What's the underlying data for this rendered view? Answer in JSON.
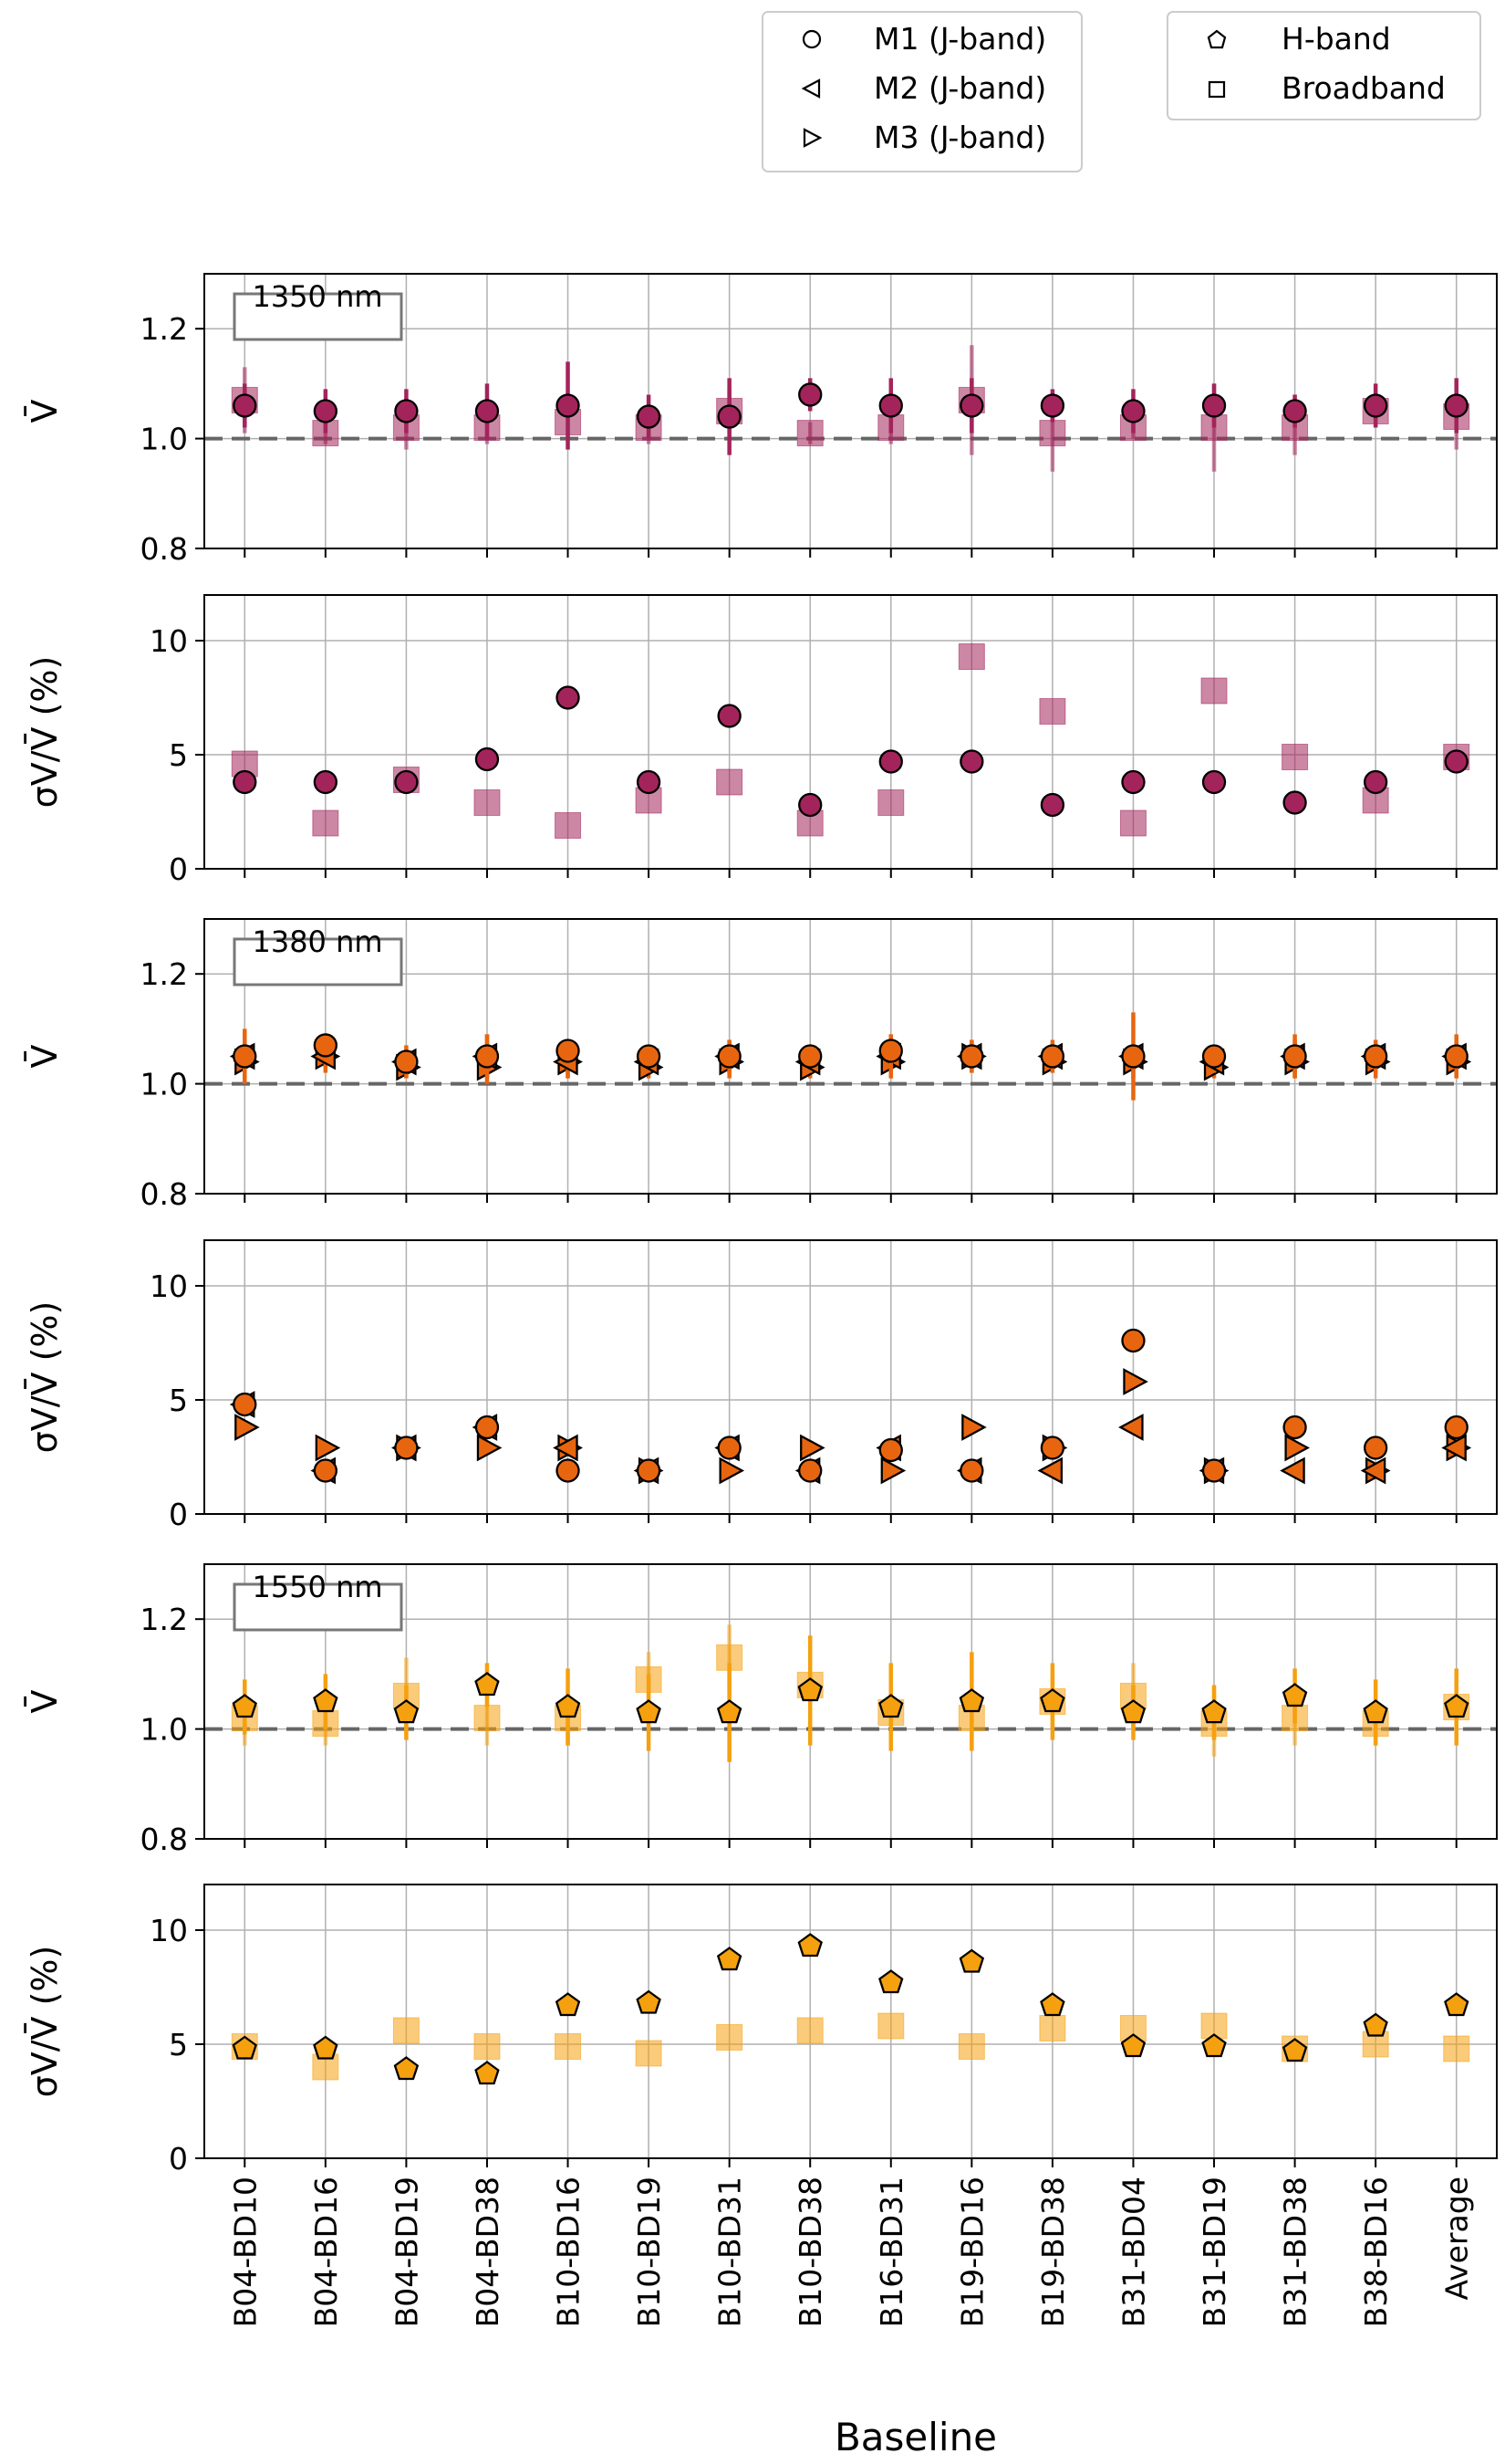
{
  "figure": {
    "xlabel": "Baseline"
  },
  "categories": [
    "B04-BD10",
    "B04-BD16",
    "B04-BD19",
    "B04-BD38",
    "B10-BD16",
    "B10-BD19",
    "B10-BD31",
    "B10-BD38",
    "B16-BD31",
    "B19-BD16",
    "B19-BD38",
    "B31-BD04",
    "B31-BD19",
    "B31-BD38",
    "B38-BD16",
    "Average"
  ],
  "legend": {
    "left": [
      {
        "marker": "circle",
        "label": "M1 (J-band)"
      },
      {
        "marker": "triangle-left",
        "label": "M2 (J-band)"
      },
      {
        "marker": "triangle-right",
        "label": "M3 (J-band)"
      }
    ],
    "right": [
      {
        "marker": "pentagon",
        "label": "H-band"
      },
      {
        "marker": "square",
        "label": "Broadband"
      }
    ]
  },
  "colors": {
    "1350": "#a3245b",
    "1380": "#e8650f",
    "1550": "#f5a00f",
    "grid": "#b0b0b0",
    "refline": "#666666"
  },
  "chart_data": [
    {
      "type": "scatter",
      "wavelength": "1350",
      "label": "1350 nm",
      "ylabel": "V̄",
      "ylim": [
        0.8,
        1.3
      ],
      "yticks": [
        0.8,
        1.0,
        1.2
      ],
      "reference": 1.0,
      "series": [
        {
          "name": "Broadband",
          "marker": "square",
          "alpha": 0.55,
          "values": [
            1.07,
            1.01,
            1.02,
            1.02,
            1.03,
            1.02,
            1.05,
            1.01,
            1.02,
            1.07,
            1.01,
            1.02,
            1.02,
            1.02,
            1.05,
            1.04
          ],
          "err": [
            0.06,
            0.02,
            0.04,
            0.03,
            0.03,
            0.03,
            0.04,
            0.02,
            0.03,
            0.1,
            0.07,
            0.02,
            0.08,
            0.05,
            0.03,
            0.06
          ]
        },
        {
          "name": "M1 (J-band)",
          "marker": "circle",
          "alpha": 1,
          "values": [
            1.06,
            1.05,
            1.05,
            1.05,
            1.06,
            1.04,
            1.04,
            1.08,
            1.06,
            1.06,
            1.06,
            1.05,
            1.06,
            1.05,
            1.06,
            1.06
          ],
          "err": [
            0.04,
            0.04,
            0.04,
            0.05,
            0.08,
            0.04,
            0.07,
            0.03,
            0.05,
            0.05,
            0.03,
            0.04,
            0.04,
            0.03,
            0.04,
            0.05
          ]
        }
      ]
    },
    {
      "type": "scatter",
      "wavelength": "1350",
      "ylabel": "σV/V̄ (%)",
      "ylim": [
        0,
        12
      ],
      "yticks": [
        0,
        5,
        10
      ],
      "series": [
        {
          "name": "Broadband",
          "marker": "square",
          "alpha": 0.55,
          "values": [
            4.6,
            2.0,
            3.9,
            2.9,
            1.9,
            3.0,
            3.8,
            2.0,
            2.9,
            9.3,
            6.9,
            2.0,
            7.8,
            4.9,
            3.0,
            4.9
          ]
        },
        {
          "name": "M1 (J-band)",
          "marker": "circle",
          "alpha": 1,
          "values": [
            3.8,
            3.8,
            3.8,
            4.8,
            7.5,
            3.8,
            6.7,
            2.8,
            4.7,
            4.7,
            2.8,
            3.8,
            3.8,
            2.9,
            3.8,
            4.7
          ]
        }
      ]
    },
    {
      "type": "scatter",
      "wavelength": "1380",
      "label": "1380 nm",
      "ylabel": "V̄",
      "ylim": [
        0.8,
        1.3
      ],
      "yticks": [
        0.8,
        1.0,
        1.2
      ],
      "reference": 1.0,
      "series": [
        {
          "name": "M3 (J-band)",
          "marker": "triangle-right",
          "alpha": 1,
          "values": [
            1.04,
            1.05,
            1.03,
            1.03,
            1.04,
            1.03,
            1.04,
            1.03,
            1.04,
            1.05,
            1.04,
            1.04,
            1.03,
            1.04,
            1.04,
            1.04
          ],
          "err": [
            0.03,
            0.03,
            0.02,
            0.03,
            0.03,
            0.02,
            0.03,
            0.02,
            0.03,
            0.03,
            0.02,
            0.03,
            0.02,
            0.03,
            0.03,
            0.03
          ]
        },
        {
          "name": "M2 (J-band)",
          "marker": "triangle-left",
          "alpha": 1,
          "values": [
            1.05,
            1.05,
            1.04,
            1.05,
            1.04,
            1.04,
            1.05,
            1.04,
            1.05,
            1.05,
            1.05,
            1.05,
            1.04,
            1.05,
            1.05,
            1.05
          ],
          "err": [
            0.05,
            0.02,
            0.03,
            0.04,
            0.03,
            0.02,
            0.03,
            0.02,
            0.04,
            0.03,
            0.03,
            0.08,
            0.02,
            0.04,
            0.03,
            0.04
          ]
        },
        {
          "name": "M1 (J-band)",
          "marker": "circle",
          "alpha": 1,
          "values": [
            1.05,
            1.07,
            1.04,
            1.05,
            1.06,
            1.05,
            1.05,
            1.05,
            1.06,
            1.05,
            1.05,
            1.05,
            1.05,
            1.05,
            1.05,
            1.05
          ],
          "err": [
            0.03,
            0.02,
            0.02,
            0.04,
            0.02,
            0.02,
            0.03,
            0.02,
            0.03,
            0.02,
            0.02,
            0.02,
            0.02,
            0.03,
            0.02,
            0.03
          ]
        }
      ]
    },
    {
      "type": "scatter",
      "wavelength": "1380",
      "ylabel": "σV/V̄ (%)",
      "ylim": [
        0,
        12
      ],
      "yticks": [
        0,
        5,
        10
      ],
      "series": [
        {
          "name": "M3 (J-band)",
          "marker": "triangle-right",
          "alpha": 1,
          "values": [
            3.8,
            2.9,
            2.9,
            2.9,
            2.9,
            1.9,
            1.9,
            2.9,
            1.9,
            3.8,
            2.9,
            5.8,
            1.9,
            2.9,
            1.9,
            2.9
          ]
        },
        {
          "name": "M2 (J-band)",
          "marker": "triangle-left",
          "alpha": 1,
          "values": [
            4.8,
            1.9,
            2.9,
            3.8,
            2.9,
            1.9,
            2.9,
            1.9,
            2.9,
            1.9,
            1.9,
            3.8,
            1.9,
            1.9,
            1.9,
            2.9
          ]
        },
        {
          "name": "M1 (J-band)",
          "marker": "circle",
          "alpha": 1,
          "values": [
            4.8,
            1.9,
            2.9,
            3.8,
            1.9,
            1.9,
            2.9,
            1.9,
            2.8,
            1.9,
            2.9,
            7.6,
            1.9,
            3.8,
            2.9,
            3.8
          ]
        }
      ]
    },
    {
      "type": "scatter",
      "wavelength": "1550",
      "label": "1550 nm",
      "ylabel": "V̄",
      "ylim": [
        0.8,
        1.3
      ],
      "yticks": [
        0.8,
        1.0,
        1.2
      ],
      "reference": 1.0,
      "series": [
        {
          "name": "Broadband",
          "marker": "square",
          "alpha": 0.55,
          "values": [
            1.02,
            1.01,
            1.06,
            1.02,
            1.02,
            1.09,
            1.13,
            1.08,
            1.03,
            1.02,
            1.05,
            1.06,
            1.01,
            1.02,
            1.01,
            1.04
          ],
          "err": [
            0.05,
            0.04,
            0.07,
            0.05,
            0.05,
            0.05,
            0.06,
            0.06,
            0.05,
            0.05,
            0.05,
            0.06,
            0.06,
            0.05,
            0.04,
            0.05
          ]
        },
        {
          "name": "H-band",
          "marker": "pentagon",
          "alpha": 1,
          "values": [
            1.04,
            1.05,
            1.03,
            1.08,
            1.04,
            1.03,
            1.03,
            1.07,
            1.04,
            1.05,
            1.05,
            1.03,
            1.03,
            1.06,
            1.03,
            1.04
          ],
          "err": [
            0.05,
            0.05,
            0.05,
            0.04,
            0.07,
            0.07,
            0.09,
            0.1,
            0.08,
            0.09,
            0.07,
            0.05,
            0.05,
            0.05,
            0.06,
            0.07
          ]
        }
      ]
    },
    {
      "type": "scatter",
      "wavelength": "1550",
      "ylabel": "σV/V̄ (%)",
      "ylim": [
        0,
        12
      ],
      "yticks": [
        0,
        5,
        10
      ],
      "series": [
        {
          "name": "Broadband",
          "marker": "square",
          "alpha": 0.55,
          "values": [
            4.9,
            4.0,
            5.6,
            4.9,
            4.9,
            4.6,
            5.3,
            5.6,
            5.8,
            4.9,
            5.7,
            5.7,
            5.8,
            4.8,
            5.0,
            4.8
          ]
        },
        {
          "name": "H-band",
          "marker": "pentagon",
          "alpha": 1,
          "values": [
            4.8,
            4.8,
            3.9,
            3.7,
            6.7,
            6.8,
            8.7,
            9.3,
            7.7,
            8.6,
            6.7,
            4.9,
            4.9,
            4.7,
            5.8,
            6.7
          ]
        }
      ]
    }
  ]
}
